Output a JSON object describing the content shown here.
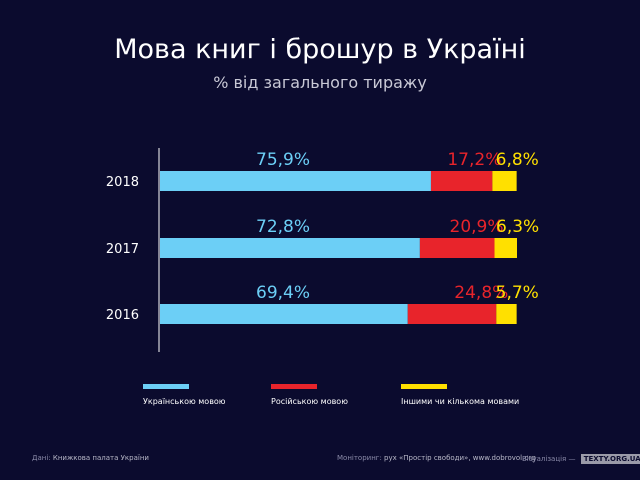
{
  "chart_data": {
    "type": "bar",
    "stacked": true,
    "orientation": "horizontal",
    "title": "Мова книг і брошур в Україні",
    "subtitle": "% від загального тиражу",
    "categories": [
      "2018",
      "2017",
      "2016"
    ],
    "series": [
      {
        "name": "Українською мовою",
        "color": "#6ccff6",
        "values": [
          75.9,
          72.8,
          69.4
        ],
        "labels": [
          "75,9%",
          "72,8%",
          "69,4%"
        ]
      },
      {
        "name": "Російською мовою",
        "color": "#e8242b",
        "values": [
          17.2,
          20.9,
          24.8
        ],
        "labels": [
          "17,2%",
          "20,9%",
          "24,8%"
        ]
      },
      {
        "name": "Іншими чи кількома мовами",
        "color": "#ffe000",
        "values": [
          6.8,
          6.3,
          5.7
        ],
        "labels": [
          "6,8%",
          "6,3%",
          "5,7%"
        ]
      }
    ],
    "xlim": [
      0,
      100
    ]
  },
  "footer": {
    "source_label": "Дані:",
    "source_value": "Книжкова палата України",
    "monitoring_label": "Моніторинг:",
    "monitoring_value": "рух «Простір свободи», www.dobrovol.org",
    "viz_label": "Візуалізація —",
    "viz_brand": "TEXTY.ORG.UA"
  }
}
